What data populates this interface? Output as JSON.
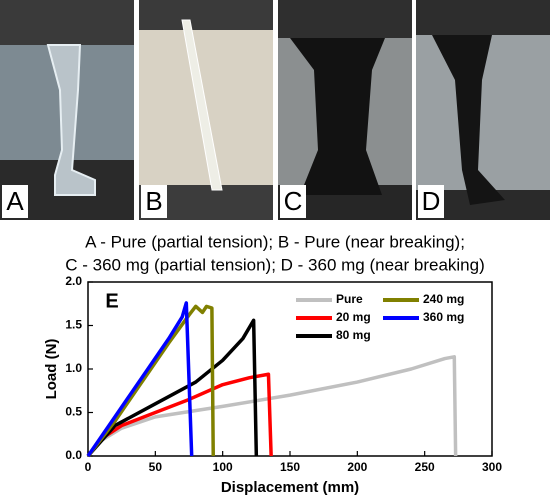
{
  "panels": [
    "A",
    "B",
    "C",
    "D"
  ],
  "caption": [
    "A - Pure (partial tension); B - Pure (near breaking);",
    "C - 360 mg (partial tension); D - 360 mg (near breaking)"
  ],
  "chart_data": {
    "type": "line",
    "annotation": "E",
    "x_label": "Displacement (mm)",
    "y_label": "Load (N)",
    "xlim": [
      0,
      300
    ],
    "xticks": [
      0,
      50,
      100,
      150,
      200,
      250,
      300
    ],
    "ylim": [
      0,
      2.0
    ],
    "yticks": [
      {
        "value": 0,
        "label": "0.0"
      },
      {
        "value": 0.5,
        "label": "0.5"
      },
      {
        "value": 1.0,
        "label": "1.0"
      },
      {
        "value": 1.5,
        "label": "1.5"
      },
      {
        "value": 2.0,
        "label": "2.0"
      }
    ],
    "legend": "upper right",
    "series": [
      {
        "name": "Pure",
        "color": "#c0c0c0",
        "x": [
          0,
          10,
          25,
          50,
          100,
          150,
          200,
          240,
          265,
          272,
          273
        ],
        "values": [
          0,
          0.18,
          0.32,
          0.45,
          0.57,
          0.7,
          0.85,
          1.0,
          1.12,
          1.14,
          0
        ]
      },
      {
        "name": "20 mg",
        "color": "#ff0000",
        "x": [
          0,
          10,
          25,
          50,
          75,
          100,
          120,
          134,
          136
        ],
        "values": [
          0,
          0.2,
          0.35,
          0.5,
          0.65,
          0.82,
          0.9,
          0.94,
          0
        ]
      },
      {
        "name": "80 mg",
        "color": "#000000",
        "x": [
          0,
          20,
          50,
          80,
          100,
          115,
          123,
          125
        ],
        "values": [
          0,
          0.35,
          0.6,
          0.85,
          1.1,
          1.35,
          1.56,
          0
        ]
      },
      {
        "name": "240 mg",
        "color": "#808000",
        "x": [
          0,
          20,
          40,
          60,
          75,
          80,
          85,
          88,
          92,
          93
        ],
        "values": [
          0,
          0.4,
          0.85,
          1.3,
          1.62,
          1.72,
          1.65,
          1.72,
          1.7,
          0
        ]
      },
      {
        "name": "360 mg",
        "color": "#0000ff",
        "x": [
          0,
          20,
          40,
          60,
          70,
          73,
          77
        ],
        "values": [
          0,
          0.45,
          0.9,
          1.35,
          1.6,
          1.76,
          0
        ]
      }
    ]
  }
}
